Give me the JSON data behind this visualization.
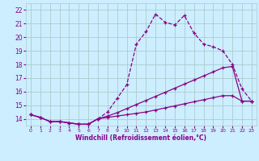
{
  "title": "",
  "xlabel": "Windchill (Refroidissement éolien,°C)",
  "bg_color": "#cceeff",
  "grid_color": "#aacccc",
  "line_color": "#880088",
  "xlim": [
    -0.5,
    23.5
  ],
  "ylim": [
    13.5,
    22.5
  ],
  "xticks": [
    0,
    1,
    2,
    3,
    4,
    5,
    6,
    7,
    8,
    9,
    10,
    11,
    12,
    13,
    14,
    15,
    16,
    17,
    18,
    19,
    20,
    21,
    22,
    23
  ],
  "yticks": [
    14,
    15,
    16,
    17,
    18,
    19,
    20,
    21,
    22
  ],
  "series1_x": [
    0,
    1,
    2,
    3,
    4,
    5,
    6,
    7,
    8,
    9,
    10,
    11,
    12,
    13,
    14,
    15,
    16,
    17,
    18,
    19,
    20,
    21,
    22,
    23
  ],
  "series1_y": [
    14.3,
    14.1,
    13.8,
    13.8,
    13.7,
    13.6,
    13.6,
    14.0,
    14.5,
    15.5,
    16.5,
    19.5,
    20.4,
    21.7,
    21.1,
    20.9,
    21.6,
    20.3,
    19.5,
    19.3,
    19.0,
    18.0,
    16.2,
    15.3
  ],
  "series2_x": [
    0,
    1,
    2,
    3,
    4,
    5,
    6,
    7,
    8,
    9,
    10,
    11,
    12,
    13,
    14,
    15,
    16,
    17,
    18,
    19,
    20,
    21,
    22,
    23
  ],
  "series2_y": [
    14.3,
    14.1,
    13.8,
    13.8,
    13.7,
    13.6,
    13.6,
    14.0,
    14.2,
    14.45,
    14.75,
    15.05,
    15.35,
    15.65,
    15.95,
    16.25,
    16.55,
    16.85,
    17.15,
    17.45,
    17.75,
    17.85,
    15.3,
    15.3
  ],
  "series3_x": [
    0,
    1,
    2,
    3,
    4,
    5,
    6,
    7,
    8,
    9,
    10,
    11,
    12,
    13,
    14,
    15,
    16,
    17,
    18,
    19,
    20,
    21,
    22,
    23
  ],
  "series3_y": [
    14.3,
    14.1,
    13.8,
    13.8,
    13.7,
    13.6,
    13.6,
    14.0,
    14.1,
    14.2,
    14.3,
    14.4,
    14.5,
    14.65,
    14.8,
    14.95,
    15.1,
    15.25,
    15.4,
    15.55,
    15.7,
    15.7,
    15.3,
    15.3
  ]
}
